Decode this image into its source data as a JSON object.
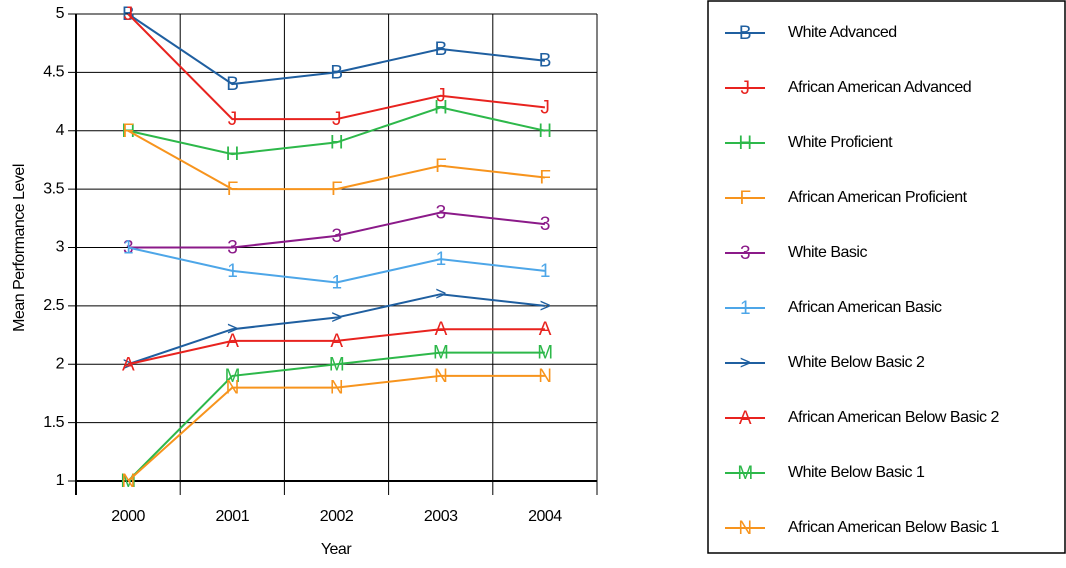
{
  "chart_data": {
    "type": "line",
    "x_label": "Year",
    "y_label": "Mean Performance Level",
    "categories": [
      "2000",
      "2001",
      "2002",
      "2003",
      "2004"
    ],
    "ylim": [
      1,
      5
    ],
    "yticks": [
      1,
      1.5,
      2,
      2.5,
      3,
      3.5,
      4,
      4.5,
      5
    ],
    "grid": true,
    "legend": "right",
    "series": [
      {
        "name": "White Advanced",
        "marker": "B",
        "color": "#1f5fa0",
        "values": [
          5,
          4.4,
          4.5,
          4.7,
          4.6
        ]
      },
      {
        "name": "African American Advanced",
        "marker": "J",
        "color": "#e8231f",
        "values": [
          5,
          4.1,
          4.1,
          4.3,
          4.2
        ]
      },
      {
        "name": "White Proficient",
        "marker": "H",
        "color": "#2db84a",
        "values": [
          4,
          3.8,
          3.9,
          4.2,
          4.0
        ]
      },
      {
        "name": "African American Proficient",
        "marker": "F",
        "color": "#f7941d",
        "values": [
          4,
          3.5,
          3.5,
          3.7,
          3.6
        ]
      },
      {
        "name": "White Basic",
        "marker": "3",
        "color": "#8b1a89",
        "values": [
          3,
          3,
          3.1,
          3.3,
          3.2
        ]
      },
      {
        "name": "African American Basic",
        "marker": "1",
        "color": "#4da6e8",
        "values": [
          3,
          2.8,
          2.7,
          2.9,
          2.8
        ]
      },
      {
        "name": "White Below Basic 2",
        "marker": ">",
        "color": "#1f5fa0",
        "values": [
          2,
          2.3,
          2.4,
          2.6,
          2.5
        ]
      },
      {
        "name": "African American Below Basic 2",
        "marker": "A",
        "color": "#e8231f",
        "values": [
          2,
          2.2,
          2.2,
          2.3,
          2.3
        ]
      },
      {
        "name": "White Below Basic 1",
        "marker": "M",
        "color": "#2db84a",
        "values": [
          1,
          1.9,
          2.0,
          2.1,
          2.1
        ]
      },
      {
        "name": "African American Below Basic 1",
        "marker": "N",
        "color": "#f7941d",
        "values": [
          1,
          1.8,
          1.8,
          1.9,
          1.9
        ]
      }
    ]
  }
}
